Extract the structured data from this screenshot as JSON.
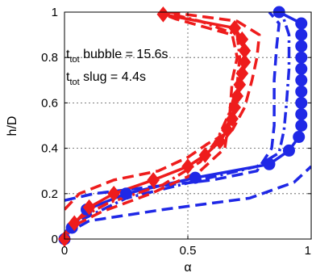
{
  "chart_data": {
    "type": "line",
    "xlabel": "α",
    "ylabel": "h/D",
    "xlim": [
      0,
      1
    ],
    "ylim": [
      0,
      1
    ],
    "xticks": [
      "0",
      "0.5",
      "1"
    ],
    "yticks": [
      "0",
      "0.2",
      "0.4",
      "0.6",
      "0.8",
      "1"
    ],
    "grid": true,
    "annotations": [
      {
        "main": "t",
        "sub": "tot",
        "rest": " bubble = 15.6s"
      },
      {
        "main": "t",
        "sub": "tot",
        "rest": " slug = 4.4s"
      }
    ],
    "colors": {
      "blue": "#1f28e6",
      "red": "#ee1c1c"
    },
    "series": [
      {
        "color": "blue",
        "style": "solid",
        "marker": "circle",
        "points": [
          [
            0,
            0
          ],
          [
            0.03,
            0.05
          ],
          [
            0.09,
            0.13
          ],
          [
            0.25,
            0.2
          ],
          [
            0.53,
            0.27
          ],
          [
            0.83,
            0.33
          ],
          [
            0.91,
            0.39
          ],
          [
            0.95,
            0.45
          ],
          [
            0.96,
            0.5
          ],
          [
            0.96,
            0.55
          ],
          [
            0.96,
            0.6
          ],
          [
            0.96,
            0.65
          ],
          [
            0.96,
            0.7
          ],
          [
            0.96,
            0.75
          ],
          [
            0.96,
            0.8
          ],
          [
            0.96,
            0.85
          ],
          [
            0.96,
            0.9
          ],
          [
            0.96,
            0.95
          ],
          [
            0.87,
            1.0
          ]
        ]
      },
      {
        "color": "blue",
        "style": "dashed",
        "marker": "none",
        "points": [
          [
            0,
            0.02
          ],
          [
            0.1,
            0.08
          ],
          [
            0.4,
            0.13
          ],
          [
            0.75,
            0.18
          ],
          [
            0.93,
            0.25
          ],
          [
            1.0,
            0.32
          ]
        ]
      },
      {
        "color": "blue",
        "style": "dashed",
        "marker": "none",
        "points": [
          [
            0,
            0.17
          ],
          [
            0.12,
            0.2
          ],
          [
            0.35,
            0.23
          ],
          [
            0.6,
            0.26
          ],
          [
            0.78,
            0.3
          ],
          [
            0.84,
            0.4
          ],
          [
            0.85,
            0.5
          ],
          [
            0.85,
            0.7
          ],
          [
            0.86,
            0.85
          ],
          [
            0.87,
            0.95
          ],
          [
            0.83,
            1.0
          ]
        ]
      },
      {
        "color": "blue",
        "style": "dashdot",
        "marker": "none",
        "points": [
          [
            0,
            0.03
          ],
          [
            0.06,
            0.08
          ],
          [
            0.25,
            0.18
          ],
          [
            0.55,
            0.26
          ],
          [
            0.78,
            0.32
          ],
          [
            0.87,
            0.38
          ],
          [
            0.89,
            0.48
          ],
          [
            0.9,
            0.6
          ],
          [
            0.91,
            0.75
          ],
          [
            0.91,
            0.9
          ],
          [
            0.88,
            1.0
          ]
        ]
      },
      {
        "color": "red",
        "style": "solid",
        "marker": "diamond",
        "points": [
          [
            0,
            0
          ],
          [
            0.04,
            0.07
          ],
          [
            0.1,
            0.14
          ],
          [
            0.2,
            0.2
          ],
          [
            0.36,
            0.26
          ],
          [
            0.5,
            0.32
          ],
          [
            0.57,
            0.37
          ],
          [
            0.63,
            0.43
          ],
          [
            0.66,
            0.48
          ],
          [
            0.68,
            0.53
          ],
          [
            0.69,
            0.58
          ],
          [
            0.7,
            0.63
          ],
          [
            0.71,
            0.68
          ],
          [
            0.72,
            0.73
          ],
          [
            0.73,
            0.78
          ],
          [
            0.73,
            0.83
          ],
          [
            0.72,
            0.88
          ],
          [
            0.69,
            0.93
          ],
          [
            0.4,
            0.99
          ]
        ]
      },
      {
        "color": "red",
        "style": "dashed",
        "marker": "none",
        "points": [
          [
            0,
            0.01
          ],
          [
            0.04,
            0.06
          ],
          [
            0.15,
            0.12
          ],
          [
            0.35,
            0.2
          ],
          [
            0.55,
            0.3
          ],
          [
            0.65,
            0.4
          ],
          [
            0.67,
            0.55
          ],
          [
            0.68,
            0.7
          ],
          [
            0.7,
            0.8
          ],
          [
            0.68,
            0.9
          ],
          [
            0.45,
            0.97
          ],
          [
            0.38,
            1.0
          ]
        ]
      },
      {
        "color": "red",
        "style": "dashed",
        "marker": "none",
        "points": [
          [
            0,
            0.13
          ],
          [
            0.06,
            0.2
          ],
          [
            0.2,
            0.26
          ],
          [
            0.38,
            0.3
          ],
          [
            0.5,
            0.36
          ],
          [
            0.58,
            0.42
          ],
          [
            0.68,
            0.48
          ],
          [
            0.73,
            0.58
          ],
          [
            0.76,
            0.7
          ],
          [
            0.78,
            0.8
          ],
          [
            0.79,
            0.9
          ],
          [
            0.7,
            0.96
          ],
          [
            0.42,
            1.0
          ]
        ]
      },
      {
        "color": "red",
        "style": "dashdot",
        "marker": "none",
        "points": [
          [
            0,
            0.02
          ],
          [
            0.04,
            0.08
          ],
          [
            0.18,
            0.16
          ],
          [
            0.4,
            0.24
          ],
          [
            0.55,
            0.34
          ],
          [
            0.62,
            0.44
          ],
          [
            0.67,
            0.56
          ],
          [
            0.7,
            0.68
          ],
          [
            0.71,
            0.8
          ],
          [
            0.7,
            0.9
          ],
          [
            0.55,
            0.96
          ],
          [
            0.4,
            1.0
          ]
        ]
      }
    ]
  }
}
